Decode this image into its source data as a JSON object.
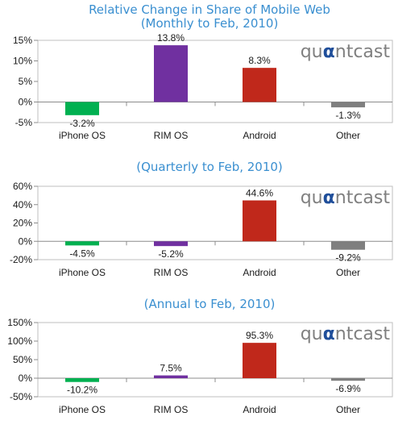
{
  "header": {
    "title": "Relative Change in Share of Mobile Web",
    "subtitle": "(Monthly to Feb, 2010)"
  },
  "brand": {
    "logo_text_pre": "qu",
    "logo_text_alpha": "α",
    "logo_text_post": "ntcast",
    "logo_color": "#7f7f7f",
    "logo_accent": "#1f4e9a"
  },
  "colors": {
    "iPhone OS": "#00b050",
    "RIM OS": "#7030a0",
    "Android": "#c0281b",
    "Other": "#7f7f7f",
    "title": "#3a8fd0"
  },
  "chart_data": [
    {
      "type": "bar",
      "title": "(Monthly to Feb, 2010)",
      "categories": [
        "iPhone OS",
        "RIM OS",
        "Android",
        "Other"
      ],
      "values": [
        -3.2,
        13.8,
        8.3,
        -1.3
      ],
      "value_labels": [
        "-3.2%",
        "13.8%",
        "8.3%",
        "-1.3%"
      ],
      "yticks": [
        15,
        10,
        5,
        0,
        -5
      ],
      "ytick_labels": [
        "15%",
        "10%",
        "5%",
        "0%",
        "-5%"
      ],
      "ylim": [
        -5,
        15
      ],
      "grid": false
    },
    {
      "type": "bar",
      "title": "(Quarterly to Feb, 2010)",
      "categories": [
        "iPhone OS",
        "RIM OS",
        "Android",
        "Other"
      ],
      "values": [
        -4.5,
        -5.2,
        44.6,
        -9.2
      ],
      "value_labels": [
        "-4.5%",
        "-5.2%",
        "44.6%",
        "-9.2%"
      ],
      "yticks": [
        60,
        40,
        20,
        0,
        -20
      ],
      "ytick_labels": [
        "60%",
        "40%",
        "20%",
        "0%",
        "-20%"
      ],
      "ylim": [
        -20,
        60
      ],
      "grid": false
    },
    {
      "type": "bar",
      "title": "(Annual to Feb, 2010)",
      "categories": [
        "iPhone OS",
        "RIM OS",
        "Android",
        "Other"
      ],
      "values": [
        -10.2,
        7.5,
        95.3,
        -6.9
      ],
      "value_labels": [
        "-10.2%",
        "7.5%",
        "95.3%",
        "-6.9%"
      ],
      "yticks": [
        150,
        100,
        50,
        0,
        -50
      ],
      "ytick_labels": [
        "150%",
        "100%",
        "50%",
        "0%",
        "-50%"
      ],
      "ylim": [
        -50,
        150
      ],
      "grid": false
    }
  ]
}
